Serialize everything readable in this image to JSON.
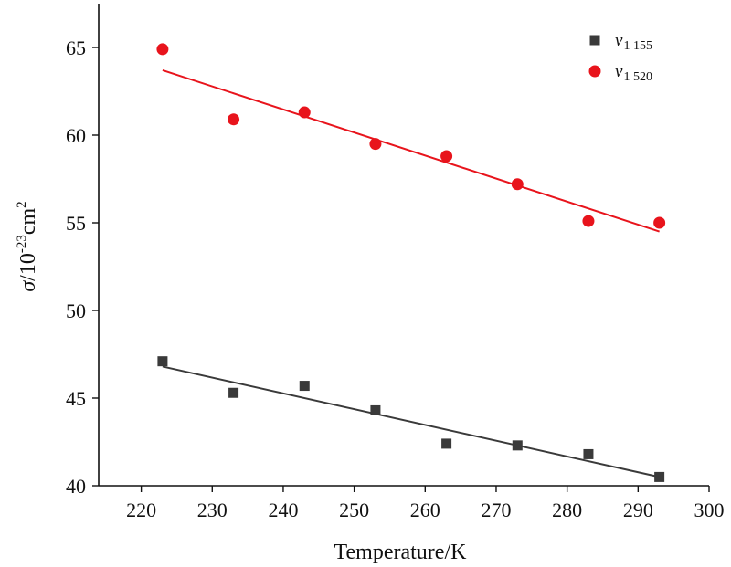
{
  "chart_data": {
    "type": "scatter",
    "title": "",
    "xlabel": "Temperature/K",
    "ylabel": "σ/10-23cm2",
    "ylabel_parts": {
      "symbol": "σ",
      "base": "/10",
      "exp1": "-23",
      "unit": "cm",
      "exp2": "2"
    },
    "xlim": [
      214,
      300
    ],
    "ylim": [
      40,
      67.5
    ],
    "xticks": [
      220,
      230,
      240,
      250,
      260,
      270,
      280,
      290,
      300
    ],
    "yticks": [
      40,
      45,
      50,
      55,
      60,
      65
    ],
    "grid": false,
    "legend_position": "top-right",
    "series": [
      {
        "name": "v1 155",
        "legend_main": "v",
        "legend_sub": "1 155",
        "marker": "square",
        "color": "#3a3a3a",
        "x": [
          223,
          233,
          243,
          253,
          263,
          273,
          283,
          293
        ],
        "y": [
          47.1,
          45.3,
          45.7,
          44.3,
          42.4,
          42.3,
          41.8,
          40.5
        ],
        "fit": {
          "x": [
            223,
            293
          ],
          "y": [
            46.8,
            40.5
          ]
        }
      },
      {
        "name": "v1 520",
        "legend_main": "v",
        "legend_sub": "1 520",
        "marker": "circle",
        "color": "#e8141c",
        "x": [
          223,
          233,
          243,
          253,
          263,
          273,
          283,
          293
        ],
        "y": [
          64.9,
          60.9,
          61.3,
          59.5,
          58.8,
          57.2,
          55.1,
          55.0
        ],
        "fit": {
          "x": [
            223,
            293
          ],
          "y": [
            63.7,
            54.5
          ]
        }
      }
    ]
  }
}
